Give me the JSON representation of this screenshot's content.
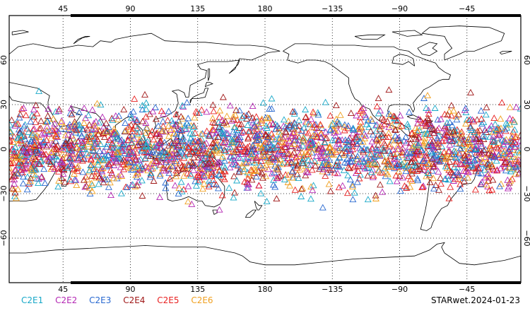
{
  "map": {
    "projection": "equirectangular",
    "lon_center": 180,
    "lon_range": [
      9,
      351
    ],
    "lat_range": [
      -90,
      90
    ],
    "lon_tick_labels_top": [
      "45",
      "90",
      "135",
      "180",
      "−135",
      "−90",
      "−45"
    ],
    "lon_tick_labels_bottom": [
      "45",
      "90",
      "135",
      "180",
      "−135",
      "−90",
      "−45"
    ],
    "lat_tick_labels_left": [
      "60",
      "30",
      "0",
      "−30",
      "−60"
    ],
    "lat_tick_labels_right": [
      "60",
      "30",
      "0",
      "−30",
      "−60"
    ],
    "grid": "dotted",
    "marker": "triangle-outline",
    "observation_lat_band": [
      -45,
      45
    ]
  },
  "legend": [
    {
      "label": "C2E1",
      "color": "#18a8c8"
    },
    {
      "label": "C2E2",
      "color": "#b428b4"
    },
    {
      "label": "C2E3",
      "color": "#2868d0"
    },
    {
      "label": "C2E4",
      "color": "#a01818"
    },
    {
      "label": "C2E5",
      "color": "#e82020"
    },
    {
      "label": "C2E6",
      "color": "#f0a020"
    }
  ],
  "stamp": "STARwet.2024-01-23"
}
